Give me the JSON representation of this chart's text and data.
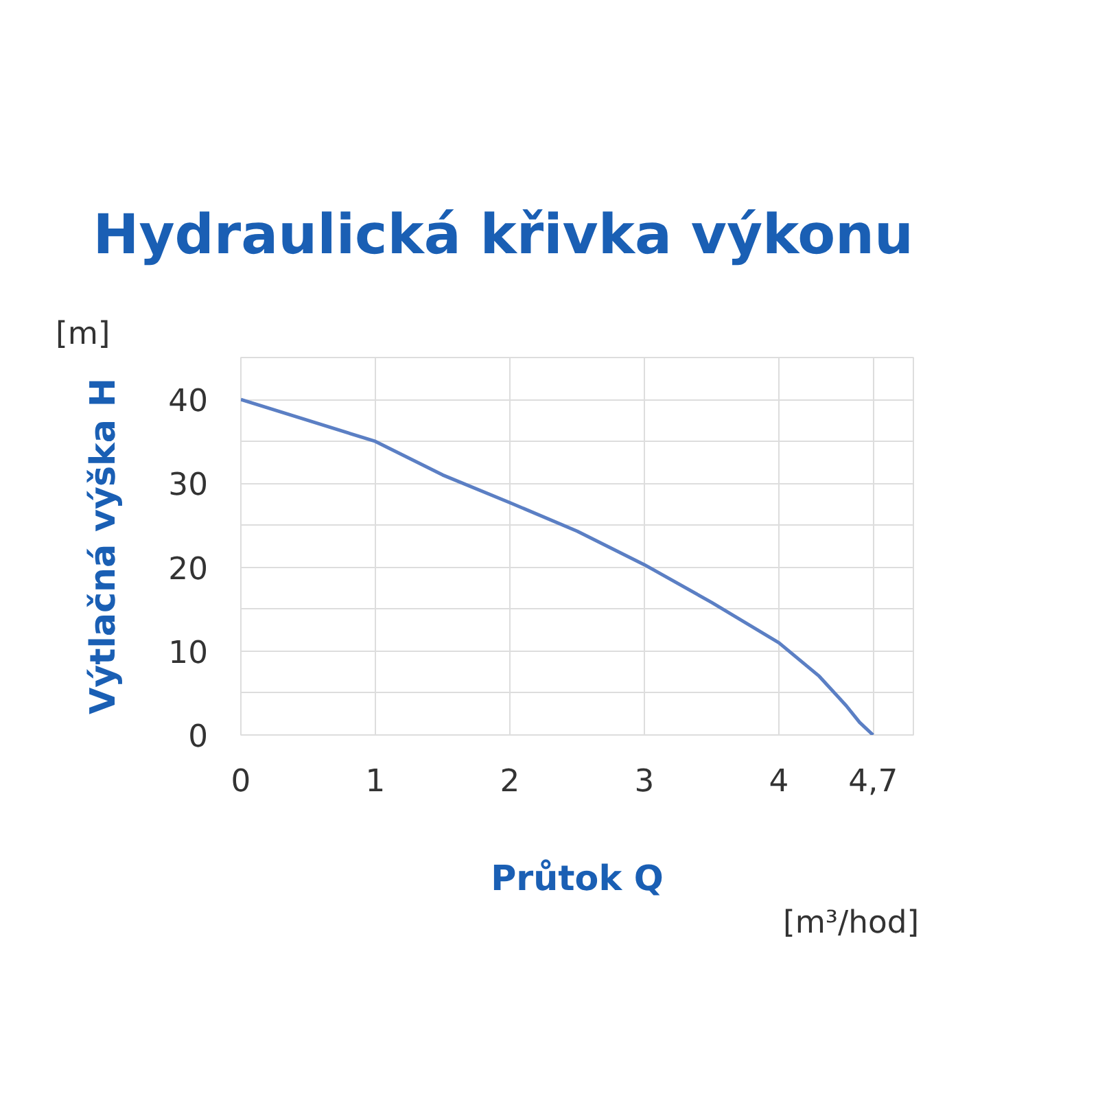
{
  "chart_data": {
    "type": "line",
    "title": "Hydraulická křivka výkonu",
    "xlabel": "Průtok Q",
    "ylabel": "Výtlačná výška H",
    "annotations": [
      "[m]",
      "[m³/hod]"
    ],
    "x": [
      0,
      0.5,
      1,
      1.5,
      2,
      2.5,
      3,
      3.5,
      4,
      4.3,
      4.5,
      4.6,
      4.7
    ],
    "series": [
      {
        "color": "#5b7fc4",
        "values": [
          40,
          37.5,
          35,
          31,
          27.7,
          24.3,
          20.3,
          15.8,
          11,
          7,
          3.5,
          1.5,
          0
        ]
      }
    ],
    "xlim": [
      0,
      5
    ],
    "ylim": [
      0,
      45
    ],
    "xticks": [
      0,
      1,
      2,
      3,
      4,
      {
        "value": 4.7,
        "label": "4,7"
      },
      {
        "value": 5,
        "label": null
      }
    ],
    "yticks": [
      0,
      {
        "value": 5,
        "label": null
      },
      10,
      {
        "value": 15,
        "label": null
      },
      20,
      {
        "value": 25,
        "label": null
      },
      30,
      {
        "value": 35,
        "label": null
      },
      40,
      {
        "value": 45,
        "label": null
      }
    ],
    "grid": true,
    "marker": "none",
    "line_style": "solid"
  }
}
